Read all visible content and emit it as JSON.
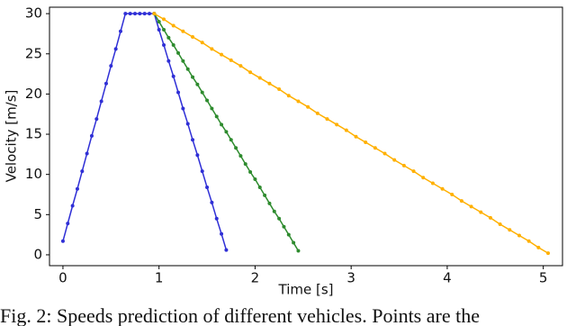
{
  "chart_data": {
    "type": "line",
    "xlabel": "Time [s]",
    "ylabel": "Velocity [m/s]",
    "caption": "Fig. 2: Speeds prediction of different vehicles. Points are the",
    "xlim": [
      -0.14,
      5.2
    ],
    "xticks": [
      0,
      1,
      2,
      3,
      4,
      5
    ],
    "ylim": [
      -1.35,
      30.8
    ],
    "yticks": [
      0,
      5,
      10,
      15,
      20,
      25,
      30
    ],
    "grid": false,
    "series": [
      {
        "color": "#2f2fd6",
        "x": [
          0,
          0.05,
          0.1,
          0.15,
          0.2,
          0.25,
          0.3,
          0.35,
          0.4,
          0.45,
          0.5,
          0.55,
          0.6,
          0.65,
          0.7,
          0.75,
          0.8,
          0.85,
          0.9,
          0.95,
          1.0,
          1.05,
          1.1,
          1.15,
          1.2,
          1.25,
          1.3,
          1.35,
          1.4,
          1.45,
          1.5,
          1.55,
          1.6,
          1.65,
          1.7
        ],
        "values": [
          1.7,
          3.9,
          6.1,
          8.2,
          10.4,
          12.6,
          14.8,
          16.9,
          19.1,
          21.3,
          23.5,
          25.6,
          27.8,
          30.0,
          30,
          30,
          30,
          30,
          30,
          30,
          28.0,
          26.1,
          24.1,
          22.2,
          20.2,
          18.2,
          16.3,
          14.3,
          12.4,
          10.4,
          8.4,
          6.5,
          4.5,
          2.6,
          0.6
        ]
      },
      {
        "color": "#2e8b2e",
        "x": [
          0.95,
          1.0,
          1.05,
          1.1,
          1.15,
          1.2,
          1.25,
          1.3,
          1.35,
          1.4,
          1.45,
          1.5,
          1.55,
          1.6,
          1.65,
          1.7,
          1.75,
          1.8,
          1.85,
          1.9,
          1.95,
          2.0,
          2.05,
          2.1,
          2.15,
          2.2,
          2.25,
          2.3,
          2.35,
          2.4,
          2.45
        ],
        "values": [
          30,
          29.0,
          28.0,
          27.0,
          26.1,
          25.1,
          24.1,
          23.1,
          22.1,
          21.2,
          20.2,
          19.2,
          18.2,
          17.2,
          16.2,
          15.3,
          14.3,
          13.3,
          12.3,
          11.3,
          10.3,
          9.4,
          8.4,
          7.4,
          6.4,
          5.4,
          4.5,
          3.5,
          2.5,
          1.5,
          0.5
        ]
      },
      {
        "color": "#ffb000",
        "x": [
          0.95,
          1.05,
          1.15,
          1.25,
          1.35,
          1.45,
          1.55,
          1.65,
          1.75,
          1.85,
          1.95,
          2.05,
          2.15,
          2.25,
          2.35,
          2.45,
          2.55,
          2.65,
          2.75,
          2.85,
          2.95,
          3.05,
          3.15,
          3.25,
          3.35,
          3.45,
          3.55,
          3.65,
          3.75,
          3.85,
          3.95,
          4.05,
          4.15,
          4.25,
          4.35,
          4.45,
          4.55,
          4.65,
          4.75,
          4.85,
          4.95,
          5.05
        ],
        "values": [
          30.0,
          29.3,
          28.5,
          27.8,
          27.1,
          26.4,
          25.6,
          24.9,
          24.2,
          23.5,
          22.7,
          22.0,
          21.3,
          20.6,
          19.8,
          19.1,
          18.4,
          17.6,
          16.9,
          16.2,
          15.5,
          14.7,
          14.0,
          13.3,
          12.6,
          11.8,
          11.1,
          10.4,
          9.6,
          8.9,
          8.2,
          7.5,
          6.7,
          6.0,
          5.3,
          4.6,
          3.8,
          3.1,
          2.4,
          1.7,
          0.9,
          0.2
        ]
      }
    ]
  }
}
